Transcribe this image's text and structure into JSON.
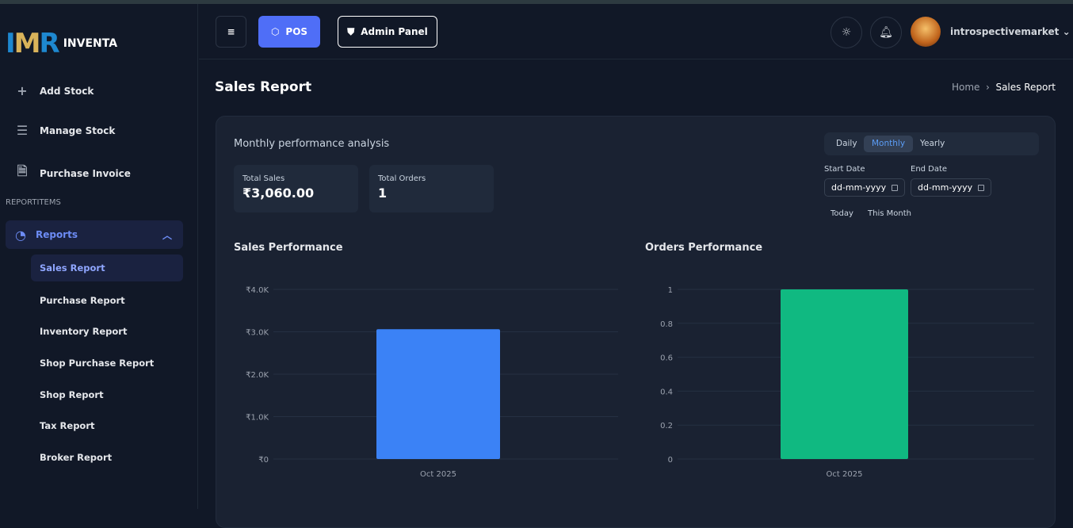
{
  "brand": {
    "logo_text": "IMR",
    "name": "INVENTA"
  },
  "sidebar": {
    "items": [
      {
        "label": "Add Stock",
        "icon": "plus-icon"
      },
      {
        "label": "Manage Stock",
        "icon": "list-icon"
      },
      {
        "label": "Purchase Invoice",
        "icon": "document-icon"
      }
    ],
    "section": "REPORTITEMS",
    "reports_label": "Reports",
    "sub_items": [
      "Sales Report",
      "Purchase Report",
      "Inventory Report",
      "Shop Purchase Report",
      "Shop Report",
      "Tax Report",
      "Broker Report"
    ]
  },
  "header": {
    "pos": "POS",
    "admin": "Admin Panel",
    "user": "introspectivemarket"
  },
  "page": {
    "title": "Sales Report",
    "crumb_home": "Home",
    "crumb_current": "Sales Report"
  },
  "card": {
    "subtitle": "Monthly performance analysis",
    "stats": [
      {
        "label": "Total Sales",
        "value": "₹3,060.00"
      },
      {
        "label": "Total Orders",
        "value": "1"
      }
    ],
    "periods": [
      "Daily",
      "Monthly",
      "Yearly"
    ],
    "active_period": "Monthly",
    "start_label": "Start Date",
    "end_label": "End Date",
    "date_placeholder": "dd-mm-yyyy",
    "quick": [
      "Today",
      "This Month"
    ]
  },
  "colors": {
    "accent": "#4f6ef7",
    "sales_bar": "#3b82f6",
    "orders_bar": "#10b981"
  },
  "chart_data": [
    {
      "type": "bar",
      "title": "Sales Performance",
      "categories": [
        "Oct 2025"
      ],
      "values": [
        3060
      ],
      "ylim": [
        0,
        4000
      ],
      "yticks": [
        "₹0",
        "₹1.0K",
        "₹2.0K",
        "₹3.0K",
        "₹4.0K"
      ],
      "grid": true
    },
    {
      "type": "bar",
      "title": "Orders Performance",
      "categories": [
        "Oct 2025"
      ],
      "values": [
        1
      ],
      "ylim": [
        0,
        1
      ],
      "yticks": [
        "0",
        "0.2",
        "0.4",
        "0.6",
        "0.8",
        "1"
      ],
      "grid": true
    }
  ]
}
